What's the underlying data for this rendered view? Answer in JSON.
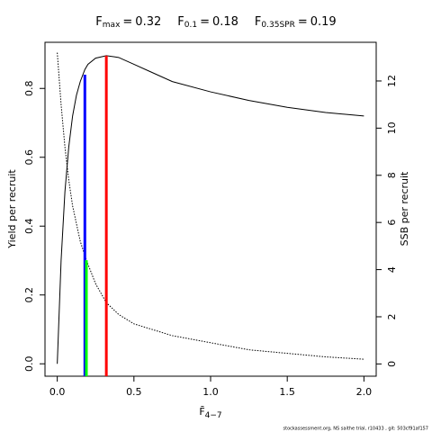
{
  "chart_data": {
    "type": "line",
    "title_items": [
      {
        "symbol": "F",
        "subscript": "max",
        "relation": "=",
        "value": 0.32,
        "color": "#ff0000",
        "top": 0.895,
        "axis": "y"
      },
      {
        "symbol": "F",
        "subscript": "0.1",
        "relation": "=",
        "value": 0.18,
        "color": "#0000ff",
        "top": 0.84,
        "axis": "y"
      },
      {
        "symbol": "F",
        "subscript": "0.35SPR",
        "relation": "=",
        "value": 0.19,
        "color": "#00ff00",
        "top": 4.4,
        "axis": "y2"
      }
    ],
    "x_label": {
      "text": "F̄",
      "subscript": "4−7"
    },
    "y_label": "Yield per recruit",
    "y2_label": "SSB per recruit",
    "footer": "stockassessment.org, NS saithe trial, r10433 , git: 503cf91af157",
    "series": [
      {
        "x": [
          0,
          0.025,
          0.05,
          0.075,
          0.1,
          0.125,
          0.15,
          0.18,
          0.2,
          0.25,
          0.32,
          0.4,
          0.5,
          0.6,
          0.75,
          1.0,
          1.25,
          1.5,
          1.75,
          2.0
        ],
        "values": [
          0,
          0.3,
          0.5,
          0.63,
          0.72,
          0.78,
          0.82,
          0.855,
          0.87,
          0.888,
          0.895,
          0.89,
          0.87,
          0.85,
          0.82,
          0.79,
          0.765,
          0.745,
          0.73,
          0.72
        ],
        "axis": "y",
        "color": "#000000",
        "dash": "solid"
      },
      {
        "x": [
          0,
          0.025,
          0.05,
          0.075,
          0.1,
          0.15,
          0.19,
          0.25,
          0.32,
          0.4,
          0.5,
          0.75,
          1.0,
          1.25,
          1.5,
          1.75,
          2.0
        ],
        "values": [
          13.2,
          11,
          9.2,
          7.8,
          6.7,
          5.2,
          4.4,
          3.4,
          2.6,
          2.1,
          1.7,
          1.2,
          0.9,
          0.6,
          0.45,
          0.3,
          0.2
        ],
        "axis": "y2",
        "color": "#000000",
        "dash": "dotted"
      }
    ],
    "xlim": [
      -0.08,
      2.08
    ],
    "ylim": [
      -0.036,
      0.934
    ],
    "y2lim": [
      -0.52,
      13.64
    ],
    "xticks": [
      {
        "value": 0,
        "label": "0.0"
      },
      {
        "value": 0.5,
        "label": "0.5"
      },
      {
        "value": 1,
        "label": "1.0"
      },
      {
        "value": 1.5,
        "label": "1.5"
      },
      {
        "value": 2,
        "label": "2.0"
      }
    ],
    "yticks": [
      {
        "value": 0,
        "label": "0.0"
      },
      {
        "value": 0.2,
        "label": "0.2"
      },
      {
        "value": 0.4,
        "label": "0.4"
      },
      {
        "value": 0.6,
        "label": "0.6"
      },
      {
        "value": 0.8,
        "label": "0.8"
      }
    ],
    "y2ticks": [
      0,
      2,
      4,
      6,
      8,
      10,
      12
    ]
  }
}
